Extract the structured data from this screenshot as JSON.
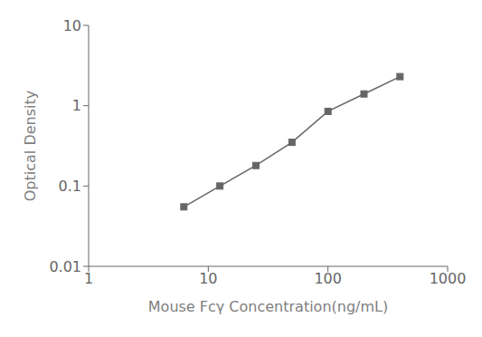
{
  "chart_data": {
    "type": "line",
    "x": [
      6.25,
      12.5,
      25,
      50,
      100,
      200,
      400
    ],
    "values": [
      0.055,
      0.1,
      0.18,
      0.35,
      0.85,
      1.4,
      2.3
    ],
    "xlabel": "Mouse Fcγ Concentration(ng/mL)",
    "ylabel": "Optical Density",
    "xlim": [
      1,
      1000
    ],
    "ylim": [
      0.01,
      10
    ],
    "xticks": [
      1,
      10,
      100,
      1000
    ],
    "yticks": [
      0.01,
      0.1,
      1,
      10
    ],
    "log": true,
    "grid": false,
    "color": "#666666",
    "marker": "square"
  }
}
